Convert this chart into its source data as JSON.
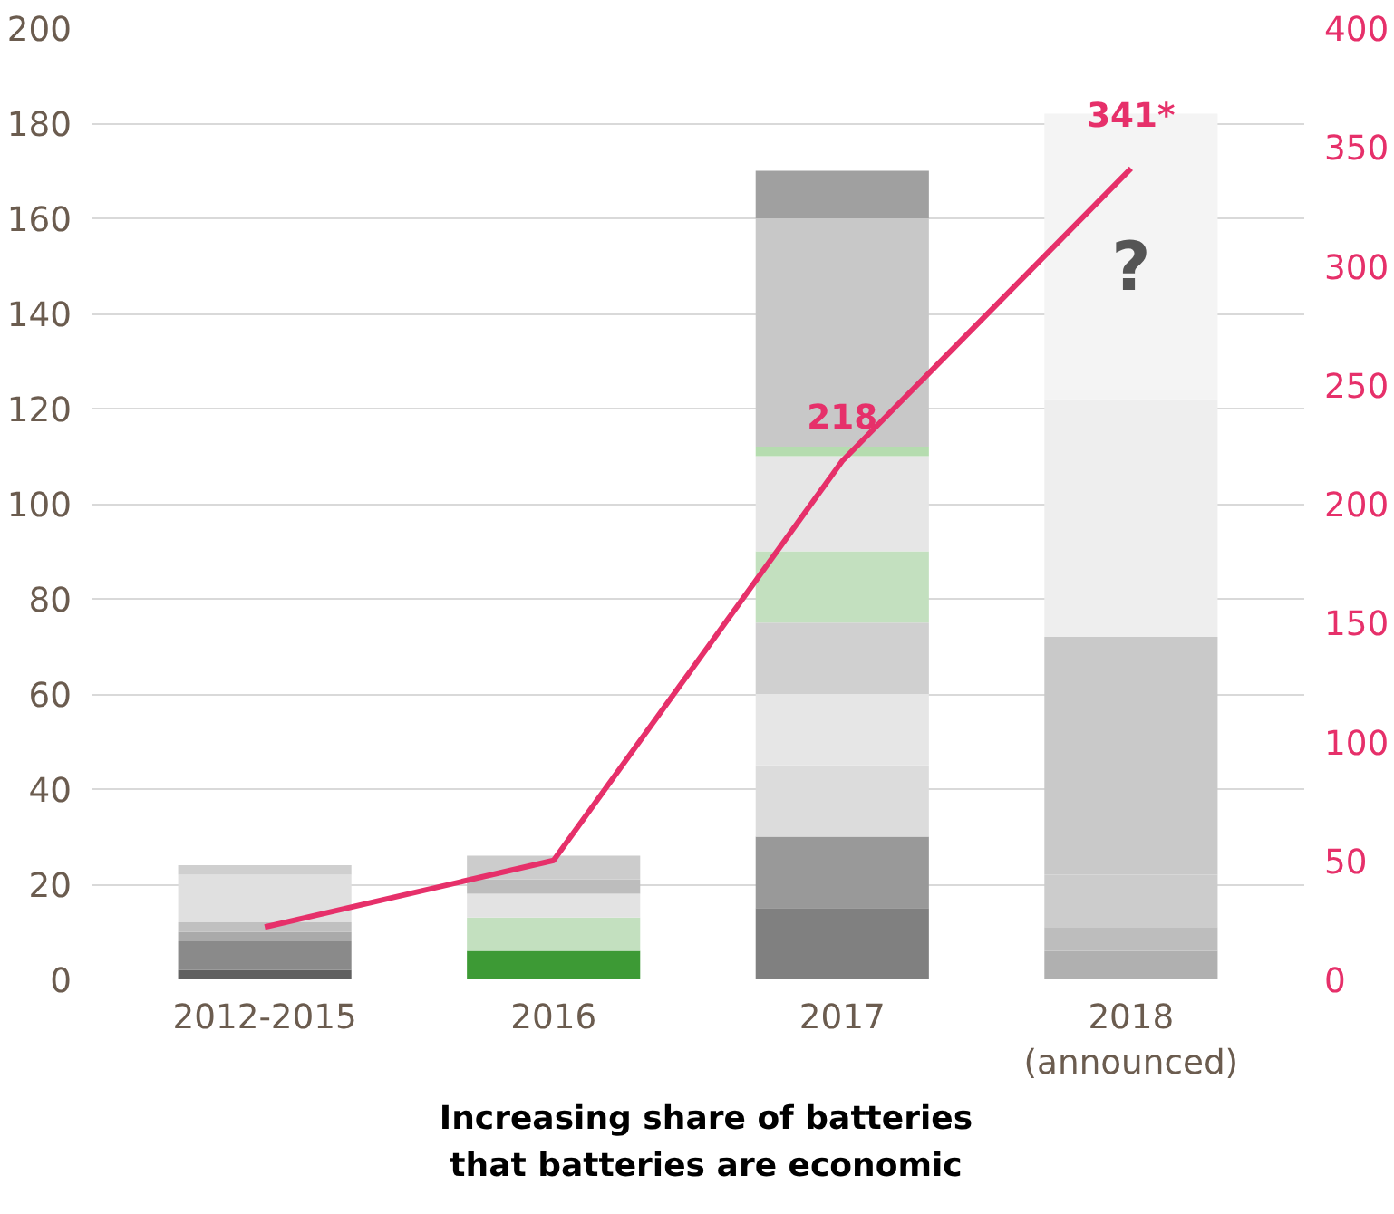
{
  "chart_data": {
    "type": "bar",
    "stacked": true,
    "categories": [
      "2012-2015",
      "2016",
      "2017",
      "2018\n(announced)"
    ],
    "ylim": [
      0,
      200
    ],
    "yticks": [
      0,
      20,
      40,
      60,
      80,
      100,
      120,
      140,
      160,
      180,
      200
    ],
    "y2lim": [
      0,
      400
    ],
    "y2ticks": [
      0,
      50,
      100,
      150,
      200,
      250,
      300,
      350,
      400
    ],
    "grid": "y",
    "series": [
      {
        "colors": [
          "#606060",
          "#3d9a35",
          "#808080",
          "#b0b0b0"
        ],
        "values": [
          2,
          6,
          15,
          6
        ]
      },
      {
        "colors": [
          "#8a8a8a",
          "#c3e0bf",
          "#999999",
          "#bdbdbd"
        ],
        "values": [
          6,
          7,
          15,
          5
        ]
      },
      {
        "colors": [
          "#aaaaaa",
          "#e3e3e3",
          "#dcdcdc",
          "#cccccc"
        ],
        "values": [
          2,
          5,
          15,
          11
        ]
      },
      {
        "colors": [
          "#c0c0c0",
          "#bdbdbd",
          "#e6e6e6",
          "#c9c9c9"
        ],
        "values": [
          2,
          3,
          15,
          50
        ]
      },
      {
        "colors": [
          "#e0e0e0",
          "#cccccc",
          "#d0d0d0",
          "#eeeeee"
        ],
        "values": [
          10,
          5,
          15,
          50
        ]
      },
      {
        "colors": [
          "#cfcfcf",
          null,
          "#c3e0bf",
          "#f4f4f4"
        ],
        "values": [
          2,
          null,
          15,
          60
        ]
      },
      {
        "colors": [
          null,
          null,
          "#e6e6e6",
          null
        ],
        "values": [
          null,
          null,
          20,
          null
        ]
      },
      {
        "colors": [
          null,
          null,
          "#b5dcaf",
          null
        ],
        "values": [
          null,
          null,
          2,
          null
        ]
      },
      {
        "colors": [
          null,
          null,
          "#c8c8c8",
          null
        ],
        "values": [
          null,
          null,
          48,
          null
        ]
      },
      {
        "colors": [
          null,
          null,
          "#a0a0a0",
          null
        ],
        "values": [
          null,
          null,
          10,
          null
        ]
      },
      {
        "type": "line",
        "axis": "y2",
        "color": "#e6306a",
        "values": [
          22,
          50,
          218,
          341
        ],
        "value_labels": [
          null,
          null,
          "218",
          "341*"
        ]
      }
    ],
    "annotations": [
      "?",
      "Increasing share of batteries\nthat batteries are economic"
    ]
  }
}
